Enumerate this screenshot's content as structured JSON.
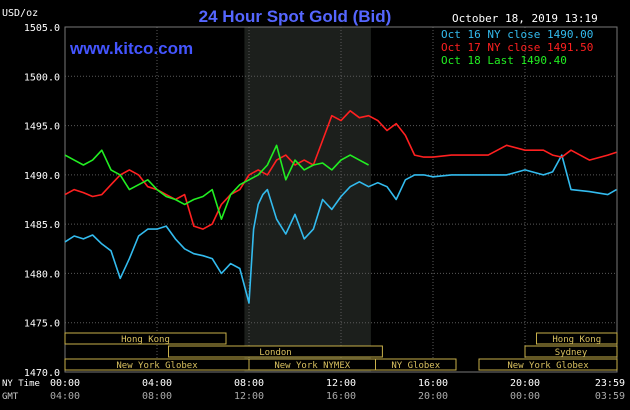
{
  "chart_data": {
    "type": "line",
    "title": "24 Hour Spot Gold (Bid)",
    "source": "www.kitco.com",
    "timestamp": "October 18, 2019 13:19",
    "ylabel": "USD/oz",
    "ylim": [
      1470.0,
      1505.0
    ],
    "yticks": [
      "1505.0",
      "1500.0",
      "1495.0",
      "1490.0",
      "1485.0",
      "1480.0",
      "1475.0",
      "1470.0"
    ],
    "xlim": [
      0,
      24
    ],
    "xticks_ny": [
      "00:00",
      "04:00",
      "08:00",
      "12:00",
      "16:00",
      "20:00",
      "23:59"
    ],
    "xticks_gmt": [
      "04:00",
      "08:00",
      "12:00",
      "16:00",
      "20:00",
      "00:00",
      "03:59"
    ],
    "xlabel_ny": "NY Time",
    "xlabel_gmt": "GMT",
    "highlight_range": [
      7.8,
      13.3
    ],
    "legend": [
      {
        "label": "Oct 16 NY close 1490.00",
        "color": "#33bbee"
      },
      {
        "label": "Oct 17 NY close 1491.50",
        "color": "#ff2020"
      },
      {
        "label": "Oct 18 Last 1490.40",
        "color": "#22ee22"
      }
    ],
    "series": [
      {
        "name": "Oct 16",
        "color": "#33bbee",
        "x": [
          0,
          0.4,
          0.8,
          1.2,
          1.6,
          2.0,
          2.4,
          2.8,
          3.2,
          3.6,
          4.0,
          4.4,
          4.8,
          5.2,
          5.6,
          6.0,
          6.4,
          6.8,
          7.2,
          7.6,
          8.0,
          8.2,
          8.4,
          8.6,
          8.8,
          9.2,
          9.6,
          10.0,
          10.4,
          10.8,
          11.2,
          11.6,
          12.0,
          12.4,
          12.8,
          13.2,
          13.6,
          14.0,
          14.4,
          14.8,
          15.2,
          15.6,
          16.0,
          16.8,
          17.6,
          18.4,
          19.2,
          20.0,
          20.8,
          21.2,
          21.6,
          22.0,
          22.8,
          23.6,
          23.98
        ],
        "values": [
          1483.2,
          1483.8,
          1483.5,
          1483.9,
          1483.0,
          1482.3,
          1479.5,
          1481.5,
          1483.8,
          1484.5,
          1484.5,
          1484.8,
          1483.5,
          1482.5,
          1482.0,
          1481.8,
          1481.5,
          1480.0,
          1481.0,
          1480.5,
          1477.0,
          1484.5,
          1487.0,
          1488.0,
          1488.5,
          1485.5,
          1484.0,
          1486.0,
          1483.5,
          1484.5,
          1487.5,
          1486.5,
          1487.8,
          1488.8,
          1489.3,
          1488.8,
          1489.2,
          1488.8,
          1487.5,
          1489.5,
          1490.0,
          1490.0,
          1489.8,
          1490.0,
          1490.0,
          1490.0,
          1490.0,
          1490.5,
          1490.0,
          1490.3,
          1492.0,
          1488.5,
          1488.3,
          1488.0,
          1488.5
        ]
      },
      {
        "name": "Oct 17",
        "color": "#ff2020",
        "x": [
          0,
          0.4,
          0.8,
          1.2,
          1.6,
          2.0,
          2.4,
          2.8,
          3.2,
          3.6,
          4.0,
          4.4,
          4.8,
          5.2,
          5.6,
          6.0,
          6.4,
          6.8,
          7.2,
          7.6,
          8.0,
          8.4,
          8.8,
          9.2,
          9.6,
          10.0,
          10.4,
          10.8,
          11.2,
          11.6,
          12.0,
          12.4,
          12.8,
          13.2,
          13.6,
          14.0,
          14.4,
          14.8,
          15.2,
          15.6,
          16.0,
          16.8,
          17.6,
          18.4,
          19.2,
          20.0,
          20.8,
          21.2,
          21.6,
          22.0,
          22.8,
          23.6,
          23.98
        ],
        "values": [
          1488.0,
          1488.5,
          1488.2,
          1487.8,
          1488.0,
          1489.0,
          1490.0,
          1490.5,
          1490.0,
          1488.8,
          1488.5,
          1488.0,
          1487.5,
          1488.0,
          1484.8,
          1484.5,
          1485.0,
          1487.0,
          1488.0,
          1488.5,
          1490.0,
          1490.5,
          1490.0,
          1491.5,
          1492.0,
          1491.0,
          1491.5,
          1491.0,
          1493.5,
          1496.0,
          1495.5,
          1496.5,
          1495.8,
          1496.0,
          1495.5,
          1494.5,
          1495.2,
          1494.0,
          1492.0,
          1491.8,
          1491.8,
          1492.0,
          1492.0,
          1492.0,
          1493.0,
          1492.5,
          1492.5,
          1492.0,
          1491.8,
          1492.5,
          1491.5,
          1492.0,
          1492.3
        ]
      },
      {
        "name": "Oct 18",
        "color": "#22ee22",
        "x": [
          0,
          0.4,
          0.8,
          1.2,
          1.6,
          2.0,
          2.4,
          2.8,
          3.2,
          3.6,
          4.0,
          4.4,
          4.8,
          5.2,
          5.6,
          6.0,
          6.4,
          6.8,
          7.2,
          7.6,
          8.0,
          8.4,
          8.8,
          9.2,
          9.6,
          10.0,
          10.4,
          10.8,
          11.2,
          11.6,
          12.0,
          12.4,
          12.8,
          13.2
        ],
        "values": [
          1492.0,
          1491.5,
          1491.0,
          1491.5,
          1492.5,
          1490.5,
          1490.0,
          1488.5,
          1489.0,
          1489.5,
          1488.5,
          1487.8,
          1487.5,
          1487.0,
          1487.5,
          1487.8,
          1488.5,
          1485.5,
          1488.0,
          1489.0,
          1489.5,
          1490.0,
          1491.0,
          1493.0,
          1489.5,
          1491.5,
          1490.5,
          1491.0,
          1491.2,
          1490.5,
          1491.5,
          1492.0,
          1491.5,
          1491.0
        ]
      }
    ],
    "sessions": [
      {
        "label": "Hong Kong",
        "start": 0,
        "end": 7.0,
        "row": 0
      },
      {
        "label": "Hong Kong",
        "start": 20.5,
        "end": 24,
        "row": 0
      },
      {
        "label": "Sydney",
        "start": 20.0,
        "end": 24,
        "row": 1
      },
      {
        "label": "London",
        "start": 4.5,
        "end": 13.8,
        "row": 1
      },
      {
        "label": "New York Globex",
        "start": 0,
        "end": 8.0,
        "row": 2
      },
      {
        "label": "New York NYMEX",
        "start": 8.0,
        "end": 13.5,
        "row": 2
      },
      {
        "label": "NY Globex",
        "start": 13.5,
        "end": 17.0,
        "row": 2
      },
      {
        "label": "New York Globex",
        "start": 18.0,
        "end": 24,
        "row": 2
      }
    ]
  }
}
